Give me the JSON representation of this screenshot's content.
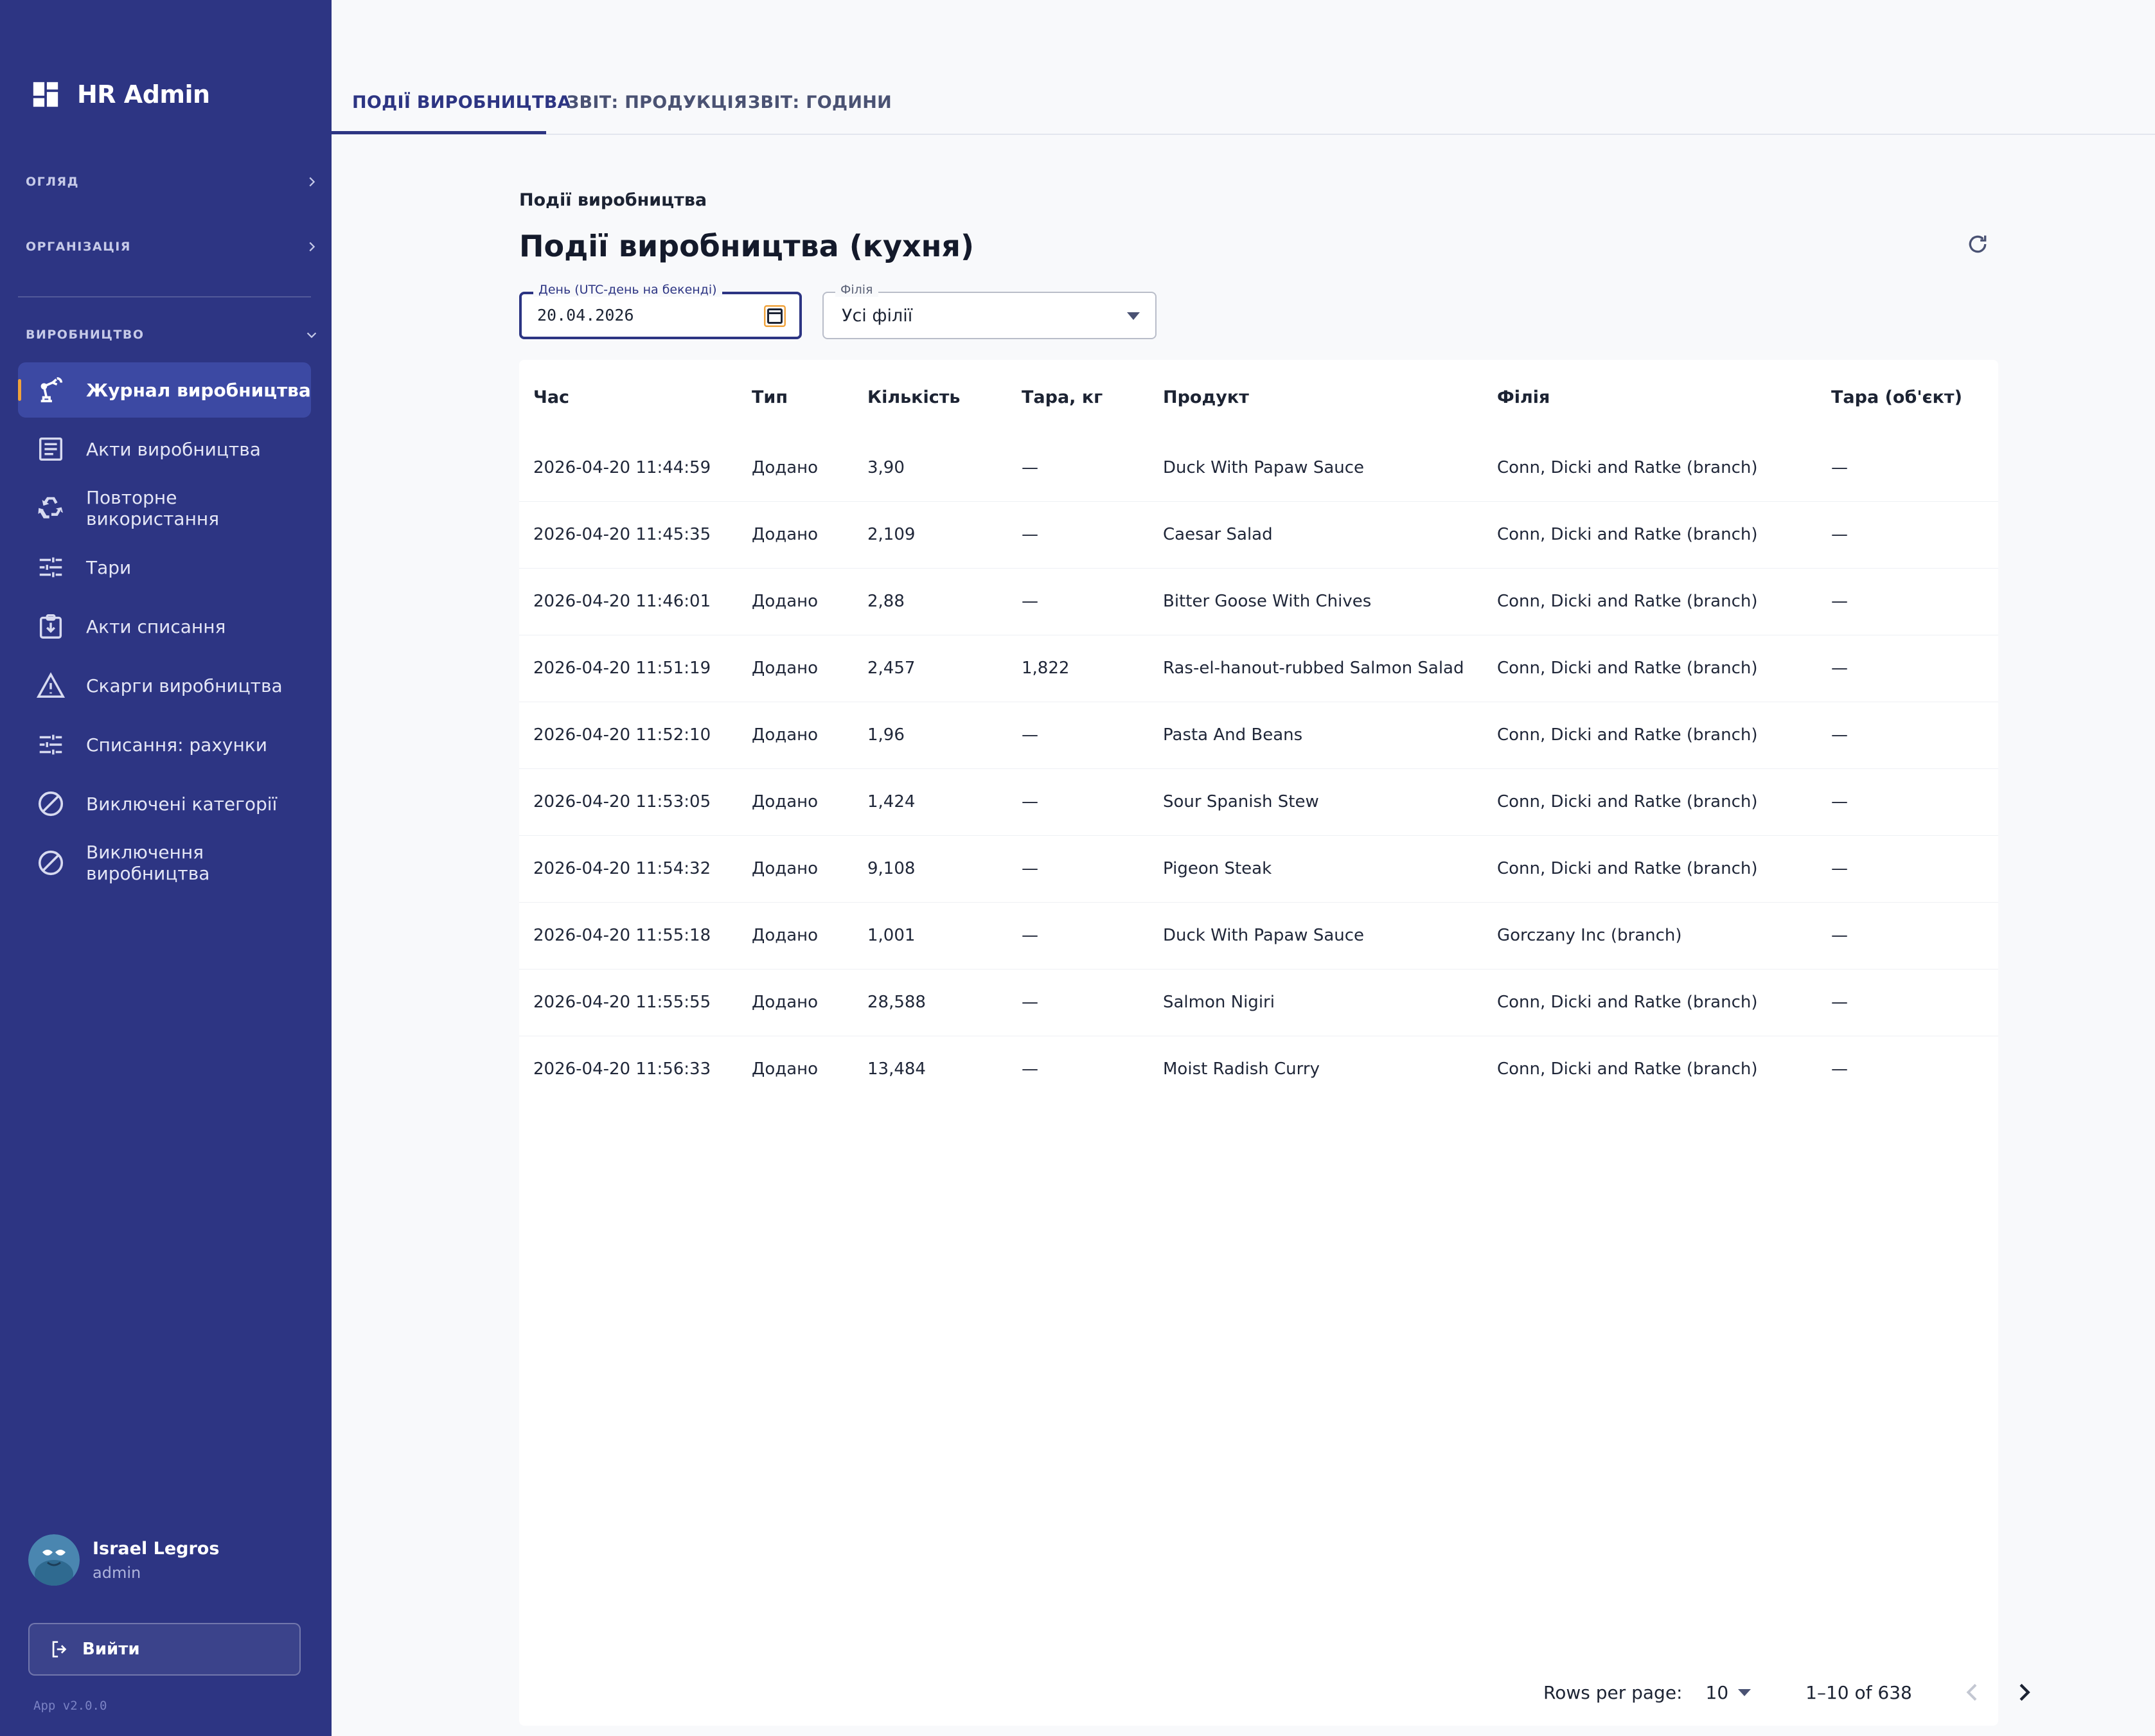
{
  "app": {
    "name": "HR Admin",
    "version": "App v2.0.0"
  },
  "sidebar": {
    "sections": [
      {
        "label": "ОГЛЯД",
        "state": "collapsed"
      },
      {
        "label": "ОРГАНІЗАЦІЯ",
        "state": "collapsed"
      },
      {
        "label": "ВИРОБНИЦТВО",
        "state": "expanded"
      }
    ],
    "items": [
      {
        "label": "Журнал виробництва",
        "icon": "robot-arm-icon",
        "active": true
      },
      {
        "label": "Акти виробництва",
        "icon": "document-list-icon",
        "active": false
      },
      {
        "label": "Повторне використання",
        "icon": "recycle-icon",
        "active": false
      },
      {
        "label": "Тари",
        "icon": "sliders-icon",
        "active": false
      },
      {
        "label": "Акти списання",
        "icon": "clipboard-download-icon",
        "active": false
      },
      {
        "label": "Скарги виробництва",
        "icon": "warning-icon",
        "active": false
      },
      {
        "label": "Списання: рахунки",
        "icon": "sliders-icon",
        "active": false
      },
      {
        "label": "Виключені категорії",
        "icon": "block-icon",
        "active": false
      },
      {
        "label": "Виключення виробництва",
        "icon": "block-icon",
        "active": false
      }
    ],
    "user": {
      "name": "Israel Legros",
      "role": "admin"
    },
    "logout_label": "Вийти"
  },
  "tabs": [
    {
      "label": "ПОДІЇ ВИРОБНИЦТВА",
      "active": true
    },
    {
      "label": "ЗВІТ: ПРОДУКЦІЯ",
      "active": false
    },
    {
      "label": "ЗВІТ: ГОДИНИ",
      "active": false
    }
  ],
  "main": {
    "breadcrumb": "Події виробництва",
    "title": "Події виробництва (кухня)",
    "filters": {
      "date": {
        "label": "День (UTC-день на бекенді)",
        "value": "20.04.2026"
      },
      "branch": {
        "label": "Філія",
        "value": "Усі філії"
      }
    },
    "table": {
      "columns": [
        "Час",
        "Тип",
        "Кількість",
        "Тара, кг",
        "Продукт",
        "Філія",
        "Тара (об'єкт)"
      ],
      "rows": [
        [
          "2026-04-20 11:44:59",
          "Додано",
          "3,90",
          "—",
          "Duck With Papaw Sauce",
          "Conn, Dicki and Ratke (branch)",
          "—"
        ],
        [
          "2026-04-20 11:45:35",
          "Додано",
          "2,109",
          "—",
          "Caesar Salad",
          "Conn, Dicki and Ratke (branch)",
          "—"
        ],
        [
          "2026-04-20 11:46:01",
          "Додано",
          "2,88",
          "—",
          "Bitter Goose With Chives",
          "Conn, Dicki and Ratke (branch)",
          "—"
        ],
        [
          "2026-04-20 11:51:19",
          "Додано",
          "2,457",
          "1,822",
          "Ras-el-hanout-rubbed Salmon Salad",
          "Conn, Dicki and Ratke (branch)",
          "—"
        ],
        [
          "2026-04-20 11:52:10",
          "Додано",
          "1,96",
          "—",
          "Pasta And Beans",
          "Conn, Dicki and Ratke (branch)",
          "—"
        ],
        [
          "2026-04-20 11:53:05",
          "Додано",
          "1,424",
          "—",
          "Sour Spanish Stew",
          "Conn, Dicki and Ratke (branch)",
          "—"
        ],
        [
          "2026-04-20 11:54:32",
          "Додано",
          "9,108",
          "—",
          "Pigeon Steak",
          "Conn, Dicki and Ratke (branch)",
          "—"
        ],
        [
          "2026-04-20 11:55:18",
          "Додано",
          "1,001",
          "—",
          "Duck With Papaw Sauce",
          "Gorczany Inc (branch)",
          "—"
        ],
        [
          "2026-04-20 11:55:55",
          "Додано",
          "28,588",
          "—",
          "Salmon Nigiri",
          "Conn, Dicki and Ratke (branch)",
          "—"
        ],
        [
          "2026-04-20 11:56:33",
          "Додано",
          "13,484",
          "—",
          "Moist Radish Curry",
          "Conn, Dicki and Ratke (branch)",
          "—"
        ]
      ]
    },
    "pagination": {
      "rows_per_page_label": "Rows per page:",
      "rows_per_page": "10",
      "range": "1–10 of 638"
    }
  },
  "colors": {
    "sidebar_bg": "#2d3583",
    "sidebar_active_bg": "#3c49a3",
    "active_marker": "#f0a23a",
    "accent": "#2d3583",
    "page_bg": "#f8f9fb"
  }
}
